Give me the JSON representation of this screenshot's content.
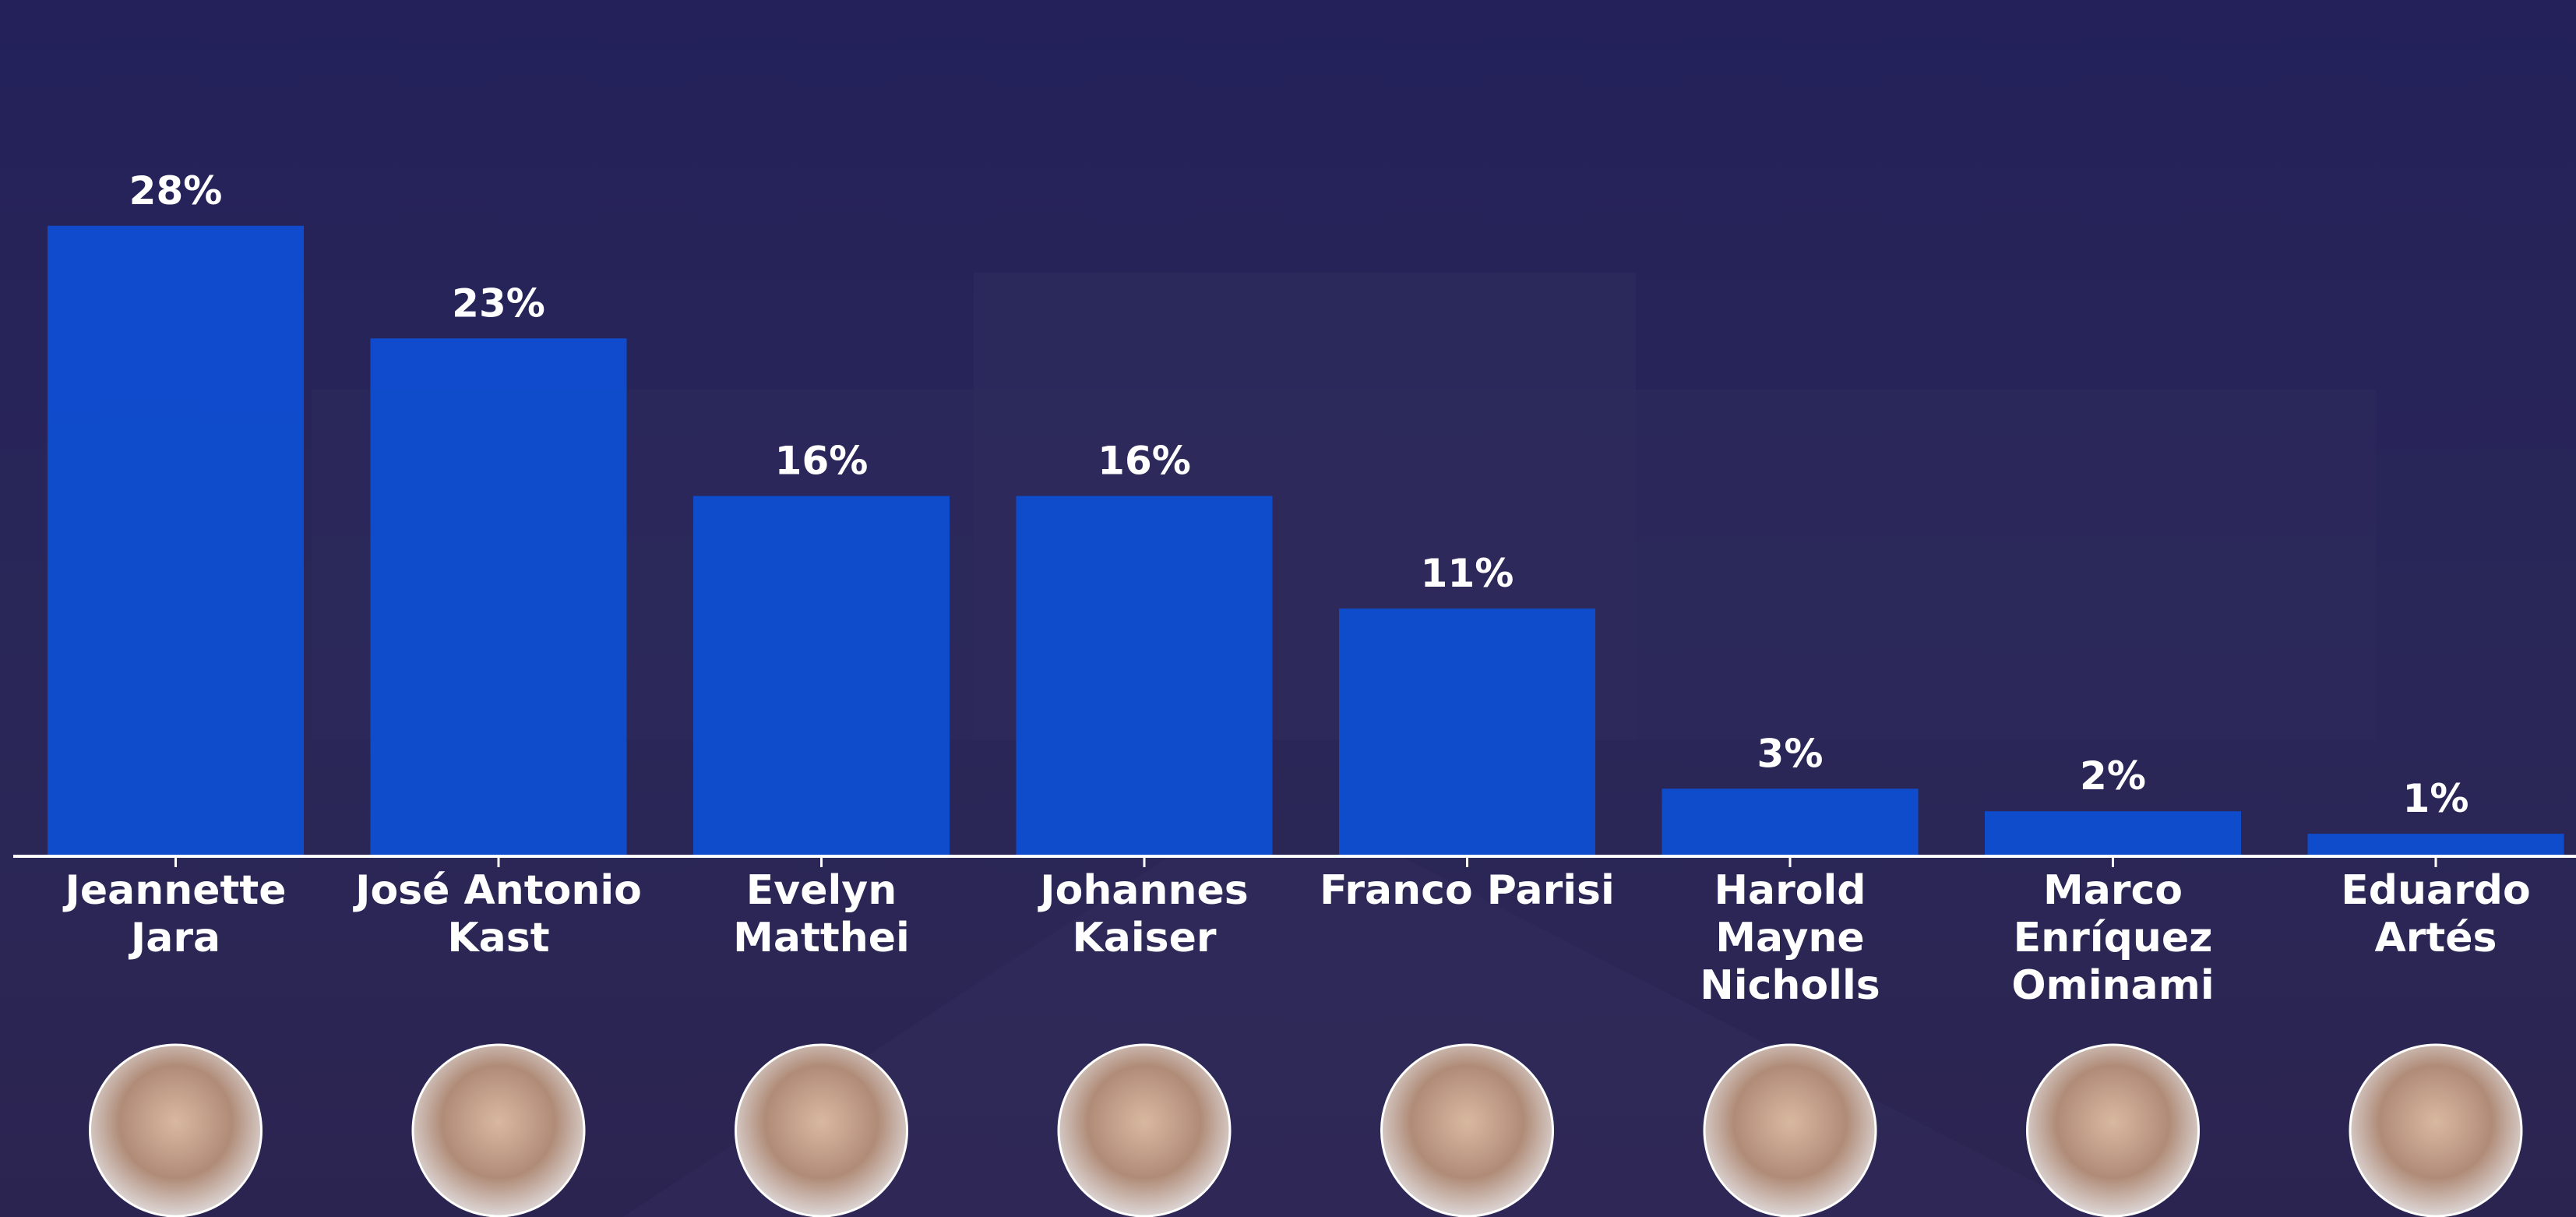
{
  "chart_data": {
    "type": "bar",
    "categories": [
      "Jeannette\nJara",
      "José Antonio\nKast",
      "Evelyn\nMatthei",
      "Johannes\nKaiser",
      "Franco Parisi",
      "Harold\nMayne\nNicholls",
      "Marco\nEnríquez\nOminami",
      "Eduardo\nArtés"
    ],
    "values": [
      28,
      23,
      16,
      16,
      11,
      3,
      2,
      1
    ],
    "value_labels": [
      "28%",
      "23%",
      "16%",
      "16%",
      "11%",
      "3%",
      "2%",
      "1%"
    ],
    "color": "#0d4fd6"
  }
}
